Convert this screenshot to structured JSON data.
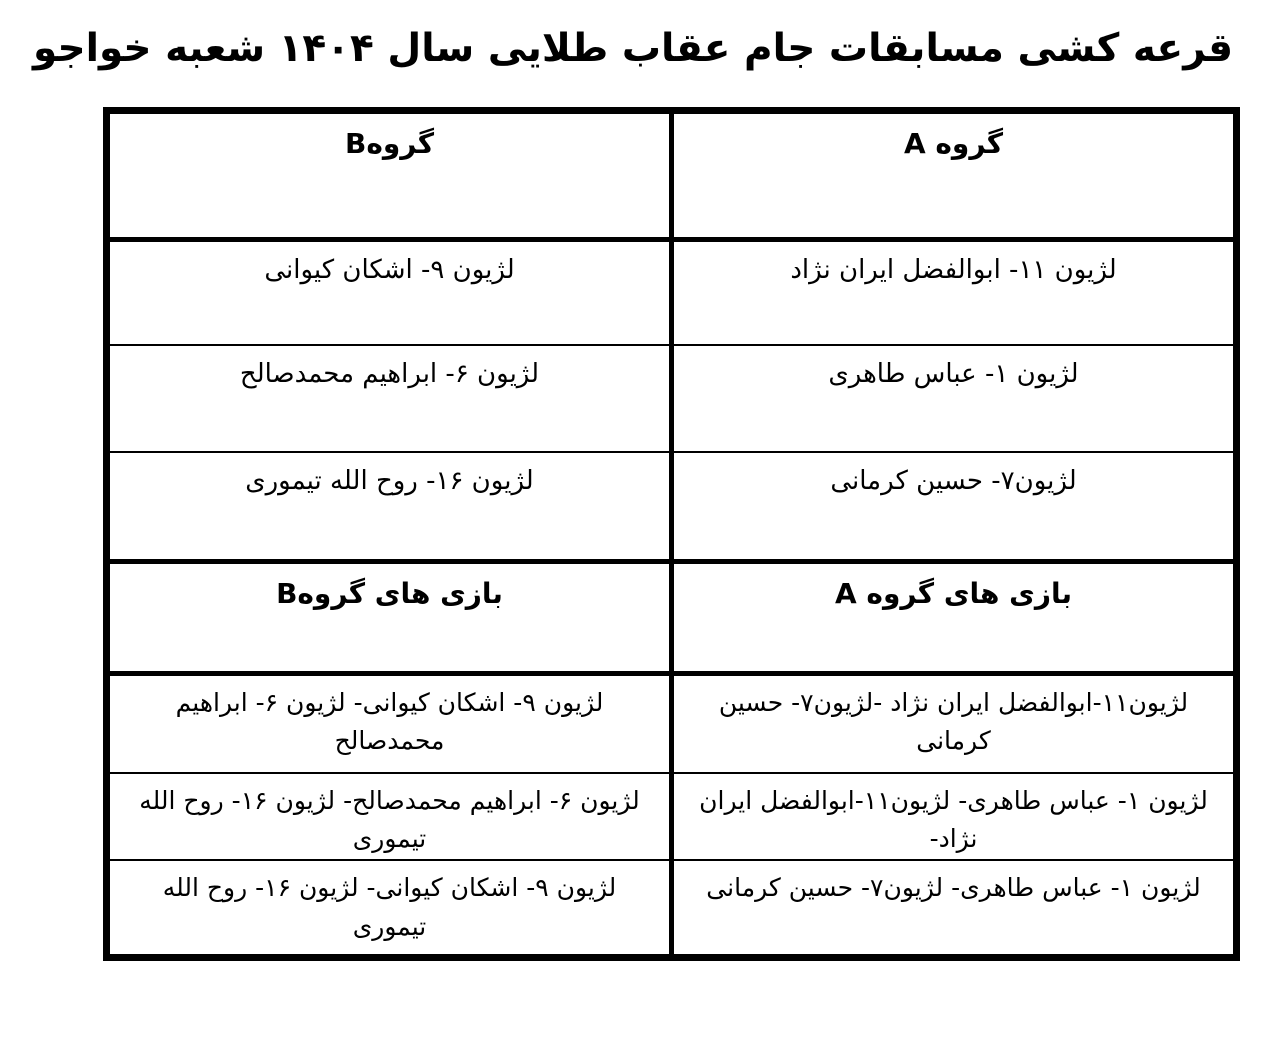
{
  "title": "قرعه کشی مسابقات جام عقاب طلایی سال ۱۴۰۴ شعبه خواجو",
  "table": {
    "group_headers": {
      "a": "گروه A",
      "b": "گروهB"
    },
    "players": [
      {
        "a": "لژیون ۱۱- ابوالفضل ایران نژاد",
        "b": "لژیون ۹- اشکان کیوانی"
      },
      {
        "a": "لژیون ۱- عباس طاهری",
        "b": "لژیون ۶- ابراهیم محمدصالح"
      },
      {
        "a": "لژیون۷- حسین کرمانی",
        "b": "لژیون ۱۶- روح الله تیموری"
      }
    ],
    "games_headers": {
      "a": "بازی های گروه A",
      "b": "بازی های گروهB"
    },
    "games": [
      {
        "a": "لژیون۱۱-ابوالفضل ایران نژاد -لژیون۷- حسین کرمانی",
        "b": "لژیون ۹- اشکان کیوانی- لژیون ۶- ابراهیم محمدصالح"
      },
      {
        "a": "لژیون ۱- عباس طاهری- لژیون۱۱-ابوالفضل ایران نژاد-",
        "b": "لژیون ۶- ابراهیم محمدصالح- لژیون ۱۶- روح الله تیموری"
      },
      {
        "a": "لژیون ۱- عباس طاهری- لژیون۷- حسین کرمانی",
        "b": "لژیون ۹- اشکان کیوانی- لژیون ۱۶- روح الله تیموری"
      }
    ]
  },
  "colors": {
    "text": "#000000",
    "background": "#ffffff",
    "border": "#000000"
  }
}
